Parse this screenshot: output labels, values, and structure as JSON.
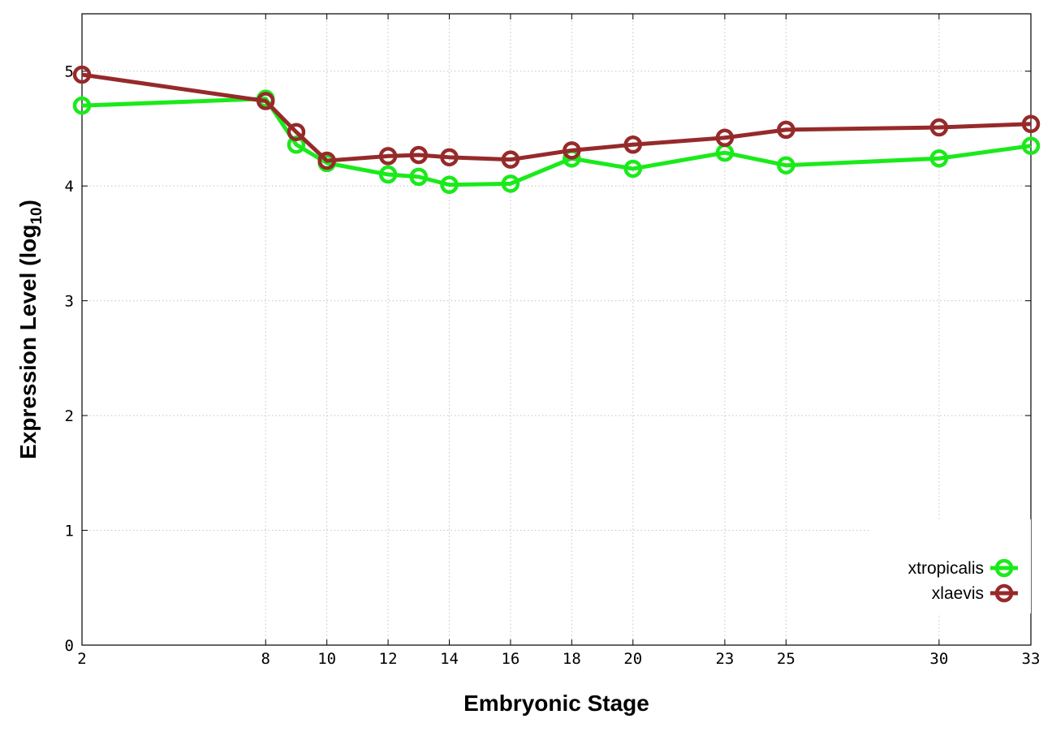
{
  "chart_data": {
    "type": "line",
    "xlabel": "Embryonic Stage",
    "ylabel_main": "Expression Level (log",
    "ylabel_sub": "10",
    "ylabel_close": ")",
    "x": [
      2,
      8,
      9,
      10,
      12,
      13,
      14,
      16,
      18,
      20,
      23,
      25,
      30,
      33
    ],
    "x_ticks": [
      "2",
      "8",
      "10",
      "12",
      "14",
      "16",
      "18",
      "20",
      "23",
      "25",
      "30",
      "33"
    ],
    "x_tick_values": [
      2,
      8,
      10,
      12,
      14,
      16,
      18,
      20,
      23,
      25,
      30,
      33
    ],
    "y_ticks": [
      "0",
      "1",
      "2",
      "3",
      "4",
      "5"
    ],
    "y_tick_values": [
      0,
      1,
      2,
      3,
      4,
      5
    ],
    "xlim": [
      2,
      33
    ],
    "ylim": [
      0,
      5.5
    ],
    "grid": true,
    "legend_position": "bottom-right",
    "series": [
      {
        "name": "xtropicalis",
        "color": "#1aea1a",
        "values": [
          4.7,
          4.76,
          4.36,
          4.2,
          4.1,
          4.08,
          4.01,
          4.02,
          4.24,
          4.15,
          4.29,
          4.18,
          4.24,
          4.35
        ]
      },
      {
        "name": "xlaevis",
        "color": "#962a2a",
        "values": [
          4.97,
          4.74,
          4.47,
          4.22,
          4.26,
          4.27,
          4.25,
          4.23,
          4.31,
          4.36,
          4.42,
          4.49,
          4.51,
          4.54
        ]
      }
    ]
  }
}
